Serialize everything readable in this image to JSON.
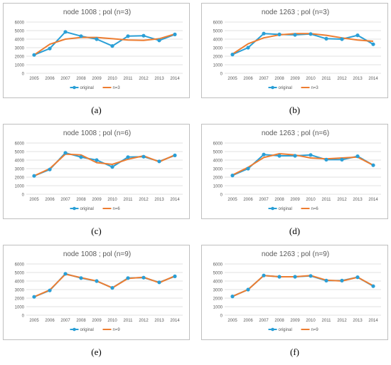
{
  "colors": {
    "original": "#2a9fd6",
    "fit": "#ed7d31",
    "grid": "#d9d9d9",
    "axis_text": "#595959"
  },
  "chart_data": [
    {
      "type": "line",
      "title": "node 1008 ; pol (n=3)",
      "caption": "(a)",
      "categories": [
        "2005",
        "2006",
        "2007",
        "2008",
        "2009",
        "2010",
        "2011",
        "2012",
        "2013",
        "2014"
      ],
      "ylim": [
        0,
        6000
      ],
      "yticks": [
        "0",
        "1000",
        "2000",
        "3000",
        "4000",
        "5000",
        "6000"
      ],
      "grid": true,
      "legend_position": "bottom",
      "series": [
        {
          "name": "original",
          "values": [
            2150,
            2900,
            4850,
            4350,
            4000,
            3200,
            4350,
            4400,
            3850,
            4550
          ],
          "markers": true
        },
        {
          "name": "n=3",
          "values": [
            2150,
            3400,
            4000,
            4200,
            4200,
            4050,
            3900,
            3850,
            4050,
            4600
          ],
          "markers": false
        }
      ]
    },
    {
      "type": "line",
      "title": "node 1263 ; pol (n=3)",
      "caption": "(b)",
      "categories": [
        "2005",
        "2006",
        "2007",
        "2008",
        "2009",
        "2010",
        "2011",
        "2012",
        "2013",
        "2014"
      ],
      "ylim": [
        0,
        6000
      ],
      "yticks": [
        "0",
        "1000",
        "2000",
        "3000",
        "4000",
        "5000",
        "6000"
      ],
      "grid": true,
      "legend_position": "bottom",
      "series": [
        {
          "name": "original",
          "values": [
            2200,
            3000,
            4650,
            4550,
            4500,
            4600,
            4050,
            4000,
            4450,
            3400
          ],
          "markers": true
        },
        {
          "name": "n=3",
          "values": [
            2250,
            3450,
            4150,
            4500,
            4650,
            4650,
            4450,
            4150,
            3900,
            3750
          ],
          "markers": false
        }
      ]
    },
    {
      "type": "line",
      "title": "node 1008 ; pol (n=6)",
      "caption": "(c)",
      "categories": [
        "2005",
        "2006",
        "2007",
        "2008",
        "2009",
        "2010",
        "2011",
        "2012",
        "2013",
        "2014"
      ],
      "ylim": [
        0,
        6000
      ],
      "yticks": [
        "0",
        "1000",
        "2000",
        "3000",
        "4000",
        "5000",
        "6000"
      ],
      "grid": true,
      "legend_position": "bottom",
      "series": [
        {
          "name": "original",
          "values": [
            2150,
            2900,
            4850,
            4350,
            4000,
            3200,
            4350,
            4400,
            3850,
            4550
          ],
          "markers": true
        },
        {
          "name": "n=6",
          "values": [
            2150,
            3000,
            4700,
            4600,
            3700,
            3500,
            4100,
            4500,
            3800,
            4600
          ],
          "markers": false
        }
      ]
    },
    {
      "type": "line",
      "title": "node 1263 ; pol (n=6)",
      "caption": "(d)",
      "categories": [
        "2005",
        "2006",
        "2007",
        "2008",
        "2009",
        "2010",
        "2011",
        "2012",
        "2013",
        "2014"
      ],
      "ylim": [
        0,
        6000
      ],
      "yticks": [
        "0",
        "1000",
        "2000",
        "3000",
        "4000",
        "5000",
        "6000"
      ],
      "grid": true,
      "legend_position": "bottom",
      "series": [
        {
          "name": "original",
          "values": [
            2200,
            3000,
            4650,
            4500,
            4500,
            4600,
            4050,
            4050,
            4450,
            3400
          ],
          "markers": true
        },
        {
          "name": "n=6",
          "values": [
            2250,
            3150,
            4300,
            4750,
            4600,
            4250,
            4150,
            4250,
            4350,
            3400
          ],
          "markers": false
        }
      ]
    },
    {
      "type": "line",
      "title": "node 1008 ; pol (n=9)",
      "caption": "(e)",
      "categories": [
        "2005",
        "2006",
        "2007",
        "2008",
        "2009",
        "2010",
        "2011",
        "2012",
        "2013",
        "2014"
      ],
      "ylim": [
        0,
        6000
      ],
      "yticks": [
        "0",
        "1000",
        "2000",
        "3000",
        "4000",
        "5000",
        "6000"
      ],
      "grid": true,
      "legend_position": "bottom",
      "series": [
        {
          "name": "original",
          "values": [
            2150,
            2900,
            4850,
            4350,
            4000,
            3200,
            4350,
            4400,
            3850,
            4550
          ],
          "markers": true
        },
        {
          "name": "n=9",
          "values": [
            2150,
            2950,
            4800,
            4400,
            4000,
            3200,
            4300,
            4450,
            3800,
            4600
          ],
          "markers": false
        }
      ]
    },
    {
      "type": "line",
      "title": "node 1263 ; pol (n=9)",
      "caption": "(f)",
      "categories": [
        "2005",
        "2006",
        "2007",
        "2008",
        "2009",
        "2010",
        "2011",
        "2012",
        "2013",
        "2014"
      ],
      "ylim": [
        0,
        6000
      ],
      "yticks": [
        "0",
        "1000",
        "2000",
        "3000",
        "4000",
        "5000",
        "6000"
      ],
      "grid": true,
      "legend_position": "bottom",
      "series": [
        {
          "name": "original",
          "values": [
            2200,
            3000,
            4650,
            4500,
            4500,
            4600,
            4050,
            4050,
            4450,
            3400
          ],
          "markers": true
        },
        {
          "name": "n=9",
          "values": [
            2200,
            3000,
            4650,
            4500,
            4500,
            4650,
            4100,
            4000,
            4450,
            3450
          ],
          "markers": false
        }
      ]
    }
  ]
}
